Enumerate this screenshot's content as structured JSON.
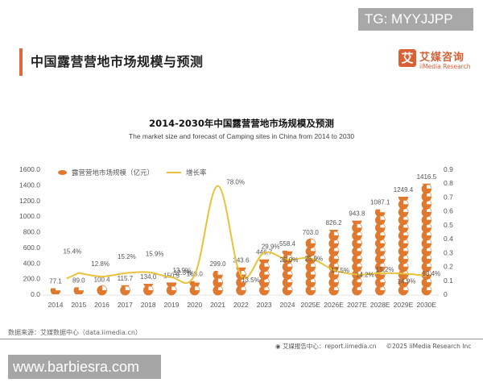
{
  "overlay": {
    "tg_badge": "TG: MYYJJPP",
    "watermark": "www.barbiesra.com"
  },
  "header": {
    "title": "中国露营营地市场规模与预测",
    "accent_color": "#e2683b",
    "logo": {
      "icon_char": "艾",
      "name_cn": "艾媒咨询",
      "name_en": "iiMedia Research"
    }
  },
  "chart": {
    "title": "2014-2030年中国露营营地市场规模及预测",
    "subtitle": "The market size and forecast of Camping sites in China from 2014 to 2030",
    "legend": {
      "series1": "露营营地市场规模（亿元）",
      "series2": "增长率"
    }
  },
  "footer": {
    "source": "数据来源：艾媒数据中心（data.iimedia.cn）",
    "report": "艾媒报告中心：report.iimedia.cn",
    "copyright": "©2025  iiMedia Research  Inc"
  },
  "colors": {
    "pie": "#e0782e",
    "line": "#e8c23a",
    "text": "#555555"
  },
  "chart_data": {
    "type": "bar",
    "title": "2014-2030年中国露营营地市场规模及预测",
    "subtitle": "The market size and forecast of Camping sites in China from 2014 to 2030",
    "categories": [
      "2014",
      "2015",
      "2016",
      "2017",
      "2018",
      "2019",
      "2020",
      "2021",
      "2022",
      "2023",
      "2024",
      "2025E",
      "2026E",
      "2027E",
      "2028E",
      "2029E",
      "2030E"
    ],
    "series": [
      {
        "name": "露营营地市场规模（亿元）",
        "type": "pictorial-bar",
        "axis": "left",
        "values": [
          77.1,
          89.0,
          100.4,
          115.7,
          134.0,
          150.5,
          168.0,
          299.0,
          343.6,
          446.7,
          558.4,
          703.0,
          826.2,
          943.8,
          1087.1,
          1249.4,
          1416.5
        ],
        "labels": [
          "77.1",
          "89.0",
          "100.4",
          "115.7",
          "134.0",
          "150.5",
          "168.0",
          "299.0",
          "343.6",
          "446.7",
          "558.4",
          "703.0",
          "826.2",
          "943.8",
          "1087.1",
          "1249.4",
          "1416.5"
        ]
      },
      {
        "name": "增长率",
        "type": "line",
        "axis": "right",
        "values": [
          null,
          0.154,
          0.128,
          0.152,
          0.159,
          0.123,
          0.139,
          0.78,
          0.135,
          0.299,
          0.25,
          0.259,
          0.175,
          0.142,
          0.152,
          0.149,
          0.134
        ],
        "labels": [
          "",
          "15.4%",
          "12.8%",
          "15.2%",
          "15.9%",
          "12.3%",
          "13.9%",
          "78.0%",
          "13.5%",
          "29.9%",
          "25.0%",
          "25.9%",
          "17.5%",
          "14.2%",
          "15.2%",
          "14.9%",
          "13.4%"
        ]
      }
    ],
    "y_left": {
      "ticks": [
        "0.0",
        "200.0",
        "400.0",
        "600.0",
        "800.0",
        "1000.0",
        "1200.0",
        "1400.0",
        "1600.0"
      ],
      "ylim": [
        0,
        1600
      ]
    },
    "y_right": {
      "ticks": [
        "0",
        "0.1",
        "0.2",
        "0.3",
        "0.4",
        "0.5",
        "0.6",
        "0.7",
        "0.8",
        "0.9"
      ],
      "ylim": [
        0,
        0.9
      ]
    },
    "xlabel": "",
    "ylabel": "",
    "grid": false,
    "legend_position": "top-left"
  }
}
